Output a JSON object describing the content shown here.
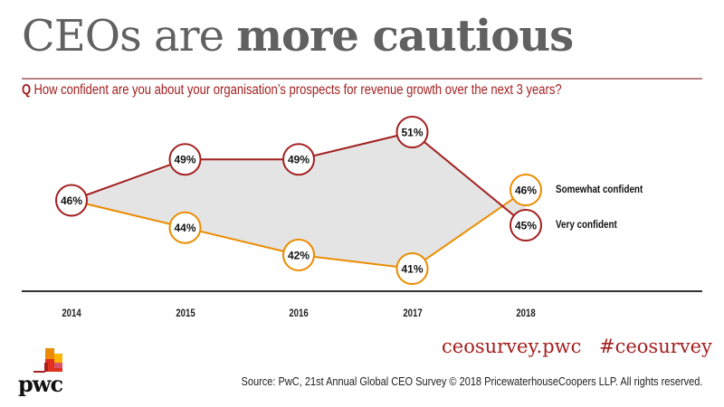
{
  "header": {
    "title_regular": "CEOs are ",
    "title_bold": "more cautious",
    "question_prefix": "Q",
    "question_text": "How confident are you about your organisation’s prospects for revenue growth over the next 3 years?"
  },
  "colors": {
    "very_confident": "#a32020",
    "somewhat_confident": "#eb8c00",
    "gap_fill": "#e4e4e4",
    "accent_text": "#a32020"
  },
  "chart_data": {
    "type": "line",
    "title": "CEOs are more cautious",
    "subtitle": "How confident are you about your organisation’s prospects for revenue growth over the next 3 years?",
    "xlabel": "",
    "ylabel": "",
    "categories": [
      "2014",
      "2015",
      "2016",
      "2017",
      "2018"
    ],
    "series": [
      {
        "name": "Very confident",
        "color": "#a32020",
        "values": [
          46,
          49,
          49,
          51,
          45
        ],
        "labels": [
          "46%",
          "49%",
          "49%",
          "51%",
          "45%"
        ]
      },
      {
        "name": "Somewhat confident",
        "color": "#eb8c00",
        "values": [
          46,
          44,
          42,
          41,
          46
        ],
        "labels": [
          "46%",
          "44%",
          "42%",
          "41%",
          "46%"
        ]
      }
    ],
    "shared_first_point_label": "46%",
    "ylim": [
      40,
      52
    ],
    "grid": false,
    "legend_position": "right-of-last-point",
    "area_between_series": true
  },
  "footer": {
    "website": "ceosurvey.pwc",
    "hashtag": "#ceosurvey",
    "source": "Source: PwC, 21st Annual Global CEO Survey © 2018 PricewaterhouseCoopers LLP. All rights reserved.",
    "logo_text": "pwc"
  }
}
